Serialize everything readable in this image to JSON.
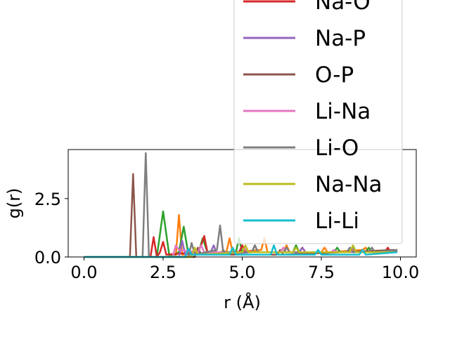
{
  "chart_data": {
    "type": "line",
    "xlabel": "r (Å)",
    "ylabel": "g(r)",
    "xlim": [
      -0.5,
      10.5
    ],
    "ylim": [
      0,
      4.6
    ],
    "xticks": [
      0.0,
      2.5,
      5.0,
      7.5,
      10.0
    ],
    "xtick_labels": [
      "0.0",
      "2.5",
      "5.0",
      "7.5",
      "10.0"
    ],
    "yticks": [
      0.0,
      2.5
    ],
    "ytick_labels": [
      "0.0",
      "2.5"
    ],
    "grid": false,
    "legend": {
      "placement": "upper-right (extends above axes)",
      "entries": [
        "Na-O",
        "Na-P",
        "O-P",
        "Li-Na",
        "Li-O",
        "Na-Na",
        "Li-Li"
      ]
    },
    "series": [
      {
        "color": "#ff7f0e",
        "x": [
          0,
          2.9,
          3.0,
          3.1,
          4.5,
          4.6,
          4.7,
          5.6,
          5.7,
          5.8,
          6.3,
          6.4,
          6.5,
          7.5,
          7.6,
          7.7,
          8.8,
          8.9,
          9.0,
          9.9
        ],
        "y": [
          0,
          0,
          1.8,
          0.1,
          0.2,
          0.8,
          0.2,
          0.3,
          0.8,
          0.2,
          0.2,
          0.5,
          0.2,
          0.2,
          0.4,
          0.2,
          0.3,
          0.4,
          0.2,
          0.3
        ]
      },
      {
        "color": "#2ca02c",
        "x": [
          0,
          2.3,
          2.5,
          2.7,
          3.0,
          3.15,
          3.3,
          3.6,
          3.75,
          3.9,
          4.8,
          4.9,
          5.0,
          6.6,
          6.7,
          6.8,
          7.9,
          8.0,
          8.1,
          8.9,
          9.0,
          9.1,
          9.9
        ],
        "y": [
          0,
          0,
          1.95,
          0,
          0.2,
          1.3,
          0.1,
          0.1,
          0.8,
          0.2,
          0.2,
          0.8,
          0.2,
          0.2,
          0.5,
          0.2,
          0.2,
          0.4,
          0.2,
          0.2,
          0.4,
          0.2,
          0.3
        ]
      },
      {
        "color": "#d62728",
        "name": "Na-O",
        "x": [
          0,
          2.1,
          2.2,
          2.3,
          2.4,
          2.5,
          2.6,
          3.6,
          3.7,
          3.8,
          3.9,
          4.9,
          5.0,
          5.1,
          6.8,
          6.9,
          7.0,
          9.5,
          9.6,
          9.7,
          9.9
        ],
        "y": [
          0,
          0,
          0.85,
          0,
          0.2,
          0.65,
          0.1,
          0.2,
          0.5,
          0.9,
          0.2,
          0.2,
          0.5,
          0.2,
          0.2,
          0.4,
          0.2,
          0.2,
          0.4,
          0.2,
          0.3
        ]
      },
      {
        "color": "#9467bd",
        "name": "Na-P",
        "x": [
          0,
          3.0,
          3.1,
          3.2,
          4.0,
          4.1,
          4.2,
          5.3,
          5.4,
          5.5,
          6.8,
          6.9,
          7.0,
          8.4,
          8.5,
          8.6,
          9.9
        ],
        "y": [
          0,
          0,
          0.7,
          0.1,
          0.2,
          0.5,
          0.1,
          0.2,
          0.5,
          0.2,
          0.2,
          0.4,
          0.2,
          0.2,
          0.4,
          0.2,
          0.3
        ]
      },
      {
        "color": "#8c564b",
        "name": "O-P",
        "x": [
          0,
          1.45,
          1.55,
          1.65,
          3.5,
          3.6,
          3.7,
          4.3,
          4.4,
          4.5,
          6.1,
          6.2,
          6.3,
          9.8,
          9.9
        ],
        "y": [
          0,
          0,
          3.55,
          0,
          0,
          0.4,
          0.1,
          0.1,
          0.3,
          0.1,
          0.1,
          0.3,
          0.1,
          0.3,
          0.2
        ]
      },
      {
        "color": "#e377c2",
        "name": "Li-Na",
        "x": [
          0,
          2.8,
          2.9,
          3.0,
          3.6,
          3.7,
          3.8,
          5.0,
          5.1,
          5.2,
          6.2,
          6.3,
          6.4,
          7.8,
          7.9,
          8.0,
          9.9
        ],
        "y": [
          0,
          0,
          0.5,
          0.3,
          0.2,
          0.5,
          0.2,
          0.2,
          0.4,
          0.2,
          0.2,
          0.4,
          0.2,
          0.2,
          0.3,
          0.2,
          0.2
        ]
      },
      {
        "color": "#7f7f7f",
        "name": "Li-O",
        "x": [
          0,
          1.85,
          1.95,
          2.05,
          3.3,
          3.4,
          3.5,
          4.2,
          4.3,
          4.4,
          5.3,
          5.4,
          5.5,
          6.3,
          6.4,
          6.5,
          8.3,
          8.4,
          8.5,
          9.0,
          9.1,
          9.2,
          9.9
        ],
        "y": [
          0,
          0,
          4.45,
          0,
          0,
          0.6,
          0.1,
          0.3,
          1.35,
          0.2,
          0.2,
          0.5,
          0.2,
          0.2,
          0.4,
          0.2,
          0.2,
          0.4,
          0.2,
          0.2,
          0.4,
          0.2,
          0.3
        ]
      },
      {
        "color": "#bcbd22",
        "name": "Na-Na",
        "x": [
          0,
          3.4,
          3.5,
          3.6,
          5.0,
          5.1,
          5.2,
          6.6,
          6.7,
          6.8,
          8.4,
          8.5,
          8.6,
          9.9
        ],
        "y": [
          0,
          0,
          0.4,
          0.1,
          0.2,
          0.5,
          0.2,
          0.2,
          0.4,
          0.2,
          0.2,
          0.5,
          0.2,
          0.2
        ]
      },
      {
        "color": "#17becf",
        "name": "Li-Li",
        "x": [
          0,
          3.2,
          3.3,
          3.4,
          4.6,
          4.7,
          4.8,
          5.9,
          6.0,
          6.1,
          7.3,
          7.4,
          7.5,
          8.7,
          8.8,
          8.9,
          9.9
        ],
        "y": [
          0,
          0,
          0.35,
          0.1,
          0.1,
          0.4,
          0.1,
          0.1,
          0.5,
          0.1,
          0.1,
          0.3,
          0.1,
          0.1,
          0.3,
          0.1,
          0.2
        ]
      }
    ]
  }
}
